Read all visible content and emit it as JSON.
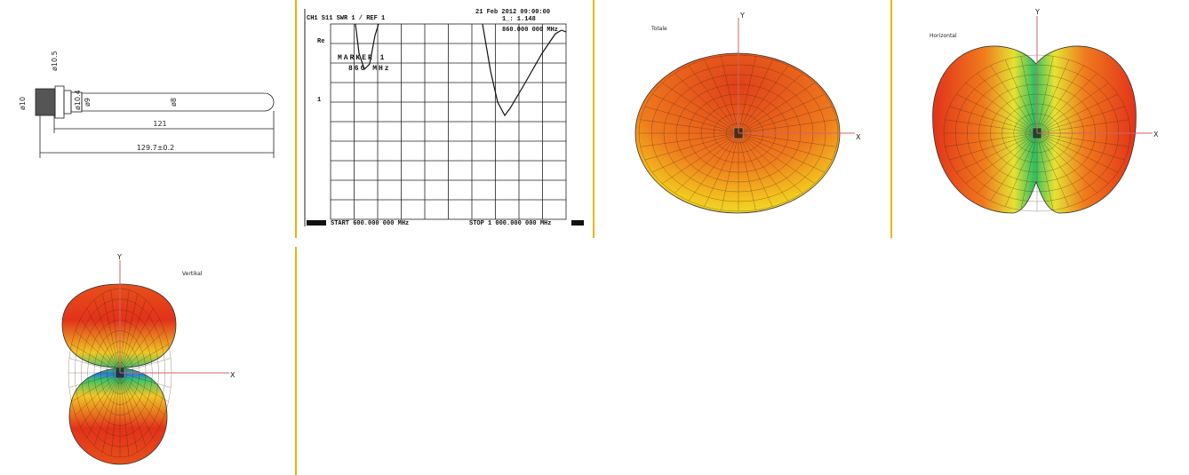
{
  "dimension_drawing": {
    "labels": [
      "ø10.5",
      "ø10",
      "ø10.4",
      "ø9",
      "ø8",
      "121",
      "129.7±0.2"
    ]
  },
  "vswr_plot": {
    "header": "CH1 S11 SWR 1 / REF 1",
    "date": "21 Feb 2012 09:00:00",
    "marker_readout": "1_: 1.148",
    "marker_freq": "860.000 000 MHz",
    "marker_title": "MARKER 1",
    "marker_value": "860 MHz",
    "scale_top": "Re",
    "scale_mid": "1",
    "start": "START 600.000 000 MHz",
    "stop": "STOP 1 000.000 000 MHz"
  },
  "patterns": [
    {
      "title": "Totale",
      "x_axis": "X",
      "y_axis": "Y"
    },
    {
      "title": "Horizontal",
      "x_axis": "X",
      "y_axis": "Y"
    },
    {
      "title": "Vertikal",
      "x_axis": "X",
      "y_axis": "Y"
    }
  ]
}
